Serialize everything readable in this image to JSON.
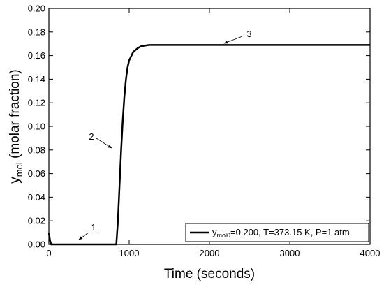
{
  "chart_data": {
    "type": "line",
    "xlabel": "Time (seconds)",
    "ylabel": [
      "y",
      "mol",
      " (molar fraction)"
    ],
    "x": [
      0,
      15,
      30,
      840,
      860,
      880,
      900,
      920,
      940,
      960,
      980,
      1000,
      1050,
      1100,
      1150,
      1250,
      4000
    ],
    "series": [
      {
        "name": [
          "y",
          "mol0",
          "=0.200, T=373.15 K, P=1 atm"
        ],
        "color": "#000000",
        "values": [
          0.01,
          0.003,
          0,
          0,
          0.02,
          0.05,
          0.08,
          0.105,
          0.125,
          0.14,
          0.15,
          0.156,
          0.163,
          0.166,
          0.168,
          0.169,
          0.169
        ]
      }
    ],
    "xlim": [
      0,
      4000
    ],
    "ylim": [
      0,
      0.2
    ],
    "xticks": [
      0,
      1000,
      2000,
      3000,
      4000
    ],
    "yticks": [
      {
        "value": 0,
        "label": "0.00"
      },
      {
        "value": 0.02,
        "label": "0.02"
      },
      {
        "value": 0.04,
        "label": "0.04"
      },
      {
        "value": 0.06,
        "label": "0.06"
      },
      {
        "value": 0.08,
        "label": "0.08"
      },
      {
        "value": 0.1,
        "label": "0.10"
      },
      {
        "value": 0.12,
        "label": "0.12"
      },
      {
        "value": 0.14,
        "label": "0.14"
      },
      {
        "value": 0.16,
        "label": "0.16"
      },
      {
        "value": 0.18,
        "label": "0.18"
      },
      {
        "value": 0.2,
        "label": "0.20"
      }
    ],
    "annotations": [
      "1",
      "2",
      "3"
    ],
    "legend": "lower right",
    "grid": false
  }
}
